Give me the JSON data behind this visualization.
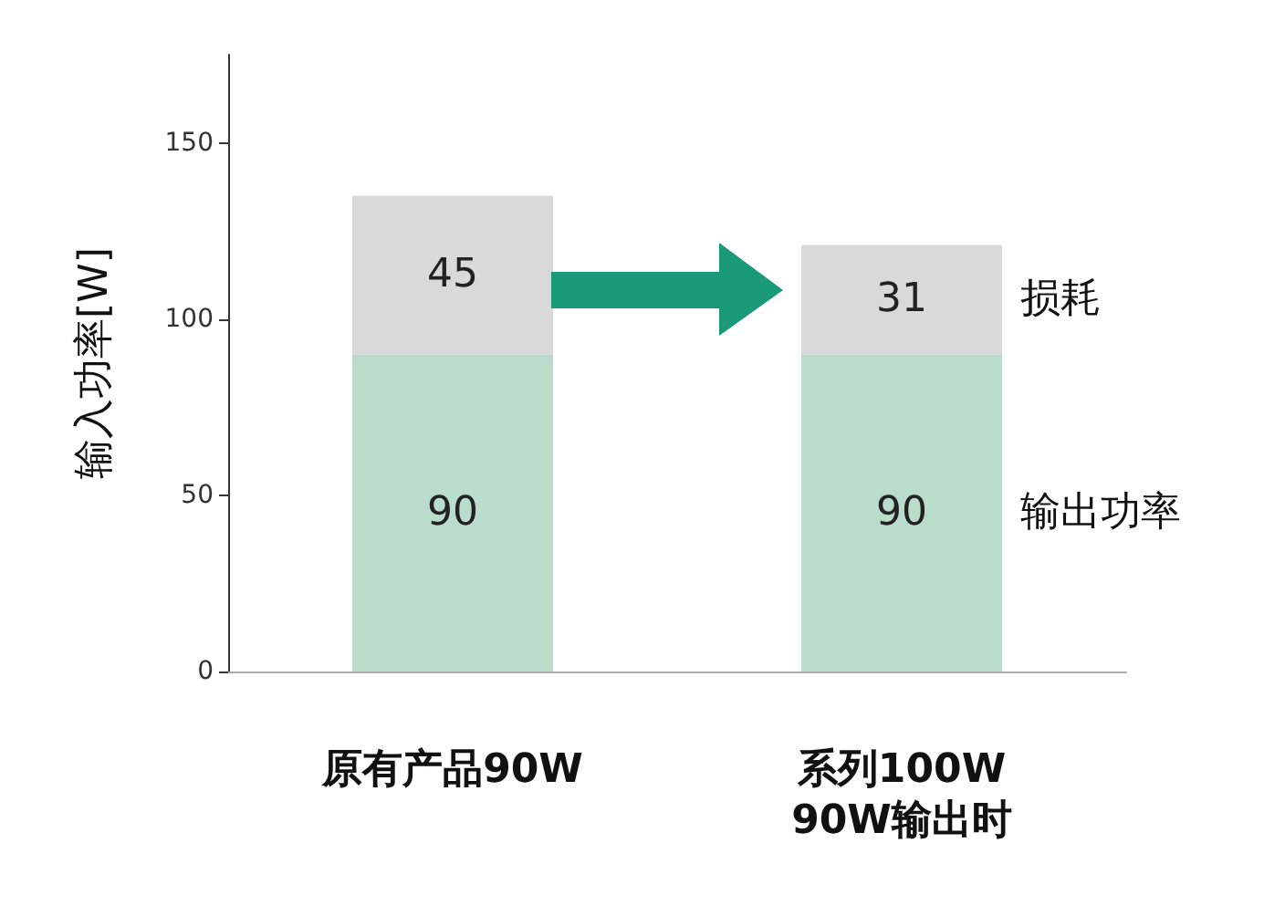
{
  "chart_data": {
    "type": "bar",
    "stacked": true,
    "ylabel": "输入功率[W]",
    "categories": [
      "原有产品90W",
      "系列100W\n90W输出时"
    ],
    "series": [
      {
        "name": "输出功率",
        "color": "#b9dccb",
        "values": [
          90,
          90
        ]
      },
      {
        "name": "损耗",
        "color": "#d9d9d9",
        "values": [
          45,
          31
        ]
      }
    ],
    "ylim": [
      0,
      175
    ],
    "yticks": [
      0,
      50,
      100,
      150
    ],
    "grid": false,
    "legend": false,
    "data_labels": true
  }
}
